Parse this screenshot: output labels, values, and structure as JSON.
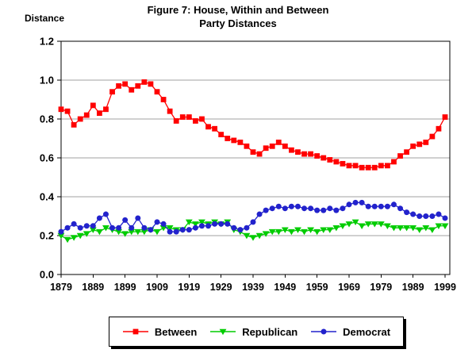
{
  "figure": {
    "title_line1": "Figure 7: House, Within and Between",
    "title_line2": "Party Distances",
    "y_axis_label": "Distance"
  },
  "chart_data": {
    "type": "line",
    "title": "Figure 7: House, Within and Between Party Distances",
    "xlabel": "",
    "ylabel": "Distance",
    "ylim": [
      0.0,
      1.2
    ],
    "y_ticks": [
      0.0,
      0.2,
      0.4,
      0.6,
      0.8,
      1.0,
      1.2
    ],
    "x_tick_labels": [
      "1879",
      "1889",
      "1899",
      "1909",
      "1919",
      "1929",
      "1939",
      "1949",
      "1959",
      "1969",
      "1979",
      "1989",
      "1999"
    ],
    "grid": true,
    "gridline_color": "#A0A0A0",
    "legend_position": "bottom",
    "x": [
      1879,
      1881,
      1883,
      1885,
      1887,
      1889,
      1891,
      1893,
      1895,
      1897,
      1899,
      1901,
      1903,
      1905,
      1907,
      1909,
      1911,
      1913,
      1915,
      1917,
      1919,
      1921,
      1923,
      1925,
      1927,
      1929,
      1931,
      1933,
      1935,
      1937,
      1939,
      1941,
      1943,
      1945,
      1947,
      1949,
      1951,
      1953,
      1955,
      1957,
      1959,
      1961,
      1963,
      1965,
      1967,
      1969,
      1971,
      1973,
      1975,
      1977,
      1979,
      1981,
      1983,
      1985,
      1987,
      1989,
      1991,
      1993,
      1995,
      1997,
      1999
    ],
    "series": [
      {
        "name": "Between",
        "color": "#FF0000",
        "marker": "square",
        "values": [
          0.85,
          0.84,
          0.77,
          0.8,
          0.82,
          0.87,
          0.83,
          0.85,
          0.94,
          0.97,
          0.98,
          0.95,
          0.97,
          0.99,
          0.98,
          0.94,
          0.9,
          0.84,
          0.79,
          0.81,
          0.81,
          0.79,
          0.8,
          0.76,
          0.75,
          0.72,
          0.7,
          0.69,
          0.68,
          0.66,
          0.63,
          0.62,
          0.65,
          0.66,
          0.68,
          0.66,
          0.64,
          0.63,
          0.62,
          0.62,
          0.61,
          0.6,
          0.59,
          0.58,
          0.57,
          0.56,
          0.56,
          0.55,
          0.55,
          0.55,
          0.56,
          0.56,
          0.58,
          0.61,
          0.63,
          0.66,
          0.67,
          0.68,
          0.71,
          0.75,
          0.81
        ]
      },
      {
        "name": "Republican",
        "color": "#00CC00",
        "marker": "triangle-down",
        "values": [
          0.2,
          0.18,
          0.19,
          0.2,
          0.21,
          0.23,
          0.22,
          0.24,
          0.23,
          0.22,
          0.21,
          0.22,
          0.22,
          0.22,
          0.23,
          0.22,
          0.24,
          0.24,
          0.23,
          0.23,
          0.27,
          0.26,
          0.27,
          0.26,
          0.27,
          0.26,
          0.27,
          0.23,
          0.22,
          0.2,
          0.19,
          0.2,
          0.21,
          0.22,
          0.22,
          0.23,
          0.22,
          0.23,
          0.22,
          0.23,
          0.22,
          0.23,
          0.23,
          0.24,
          0.25,
          0.26,
          0.27,
          0.25,
          0.26,
          0.26,
          0.26,
          0.25,
          0.24,
          0.24,
          0.24,
          0.24,
          0.23,
          0.24,
          0.23,
          0.25,
          0.25
        ]
      },
      {
        "name": "Democrat",
        "color": "#2222CC",
        "marker": "circle",
        "values": [
          0.22,
          0.24,
          0.26,
          0.24,
          0.25,
          0.25,
          0.29,
          0.31,
          0.24,
          0.24,
          0.28,
          0.24,
          0.29,
          0.24,
          0.23,
          0.27,
          0.26,
          0.22,
          0.22,
          0.23,
          0.23,
          0.24,
          0.25,
          0.25,
          0.26,
          0.26,
          0.26,
          0.24,
          0.23,
          0.24,
          0.27,
          0.31,
          0.33,
          0.34,
          0.35,
          0.34,
          0.35,
          0.35,
          0.34,
          0.34,
          0.33,
          0.33,
          0.34,
          0.33,
          0.34,
          0.36,
          0.37,
          0.37,
          0.35,
          0.35,
          0.35,
          0.35,
          0.36,
          0.34,
          0.32,
          0.31,
          0.3,
          0.3,
          0.3,
          0.31,
          0.29
        ]
      }
    ]
  }
}
